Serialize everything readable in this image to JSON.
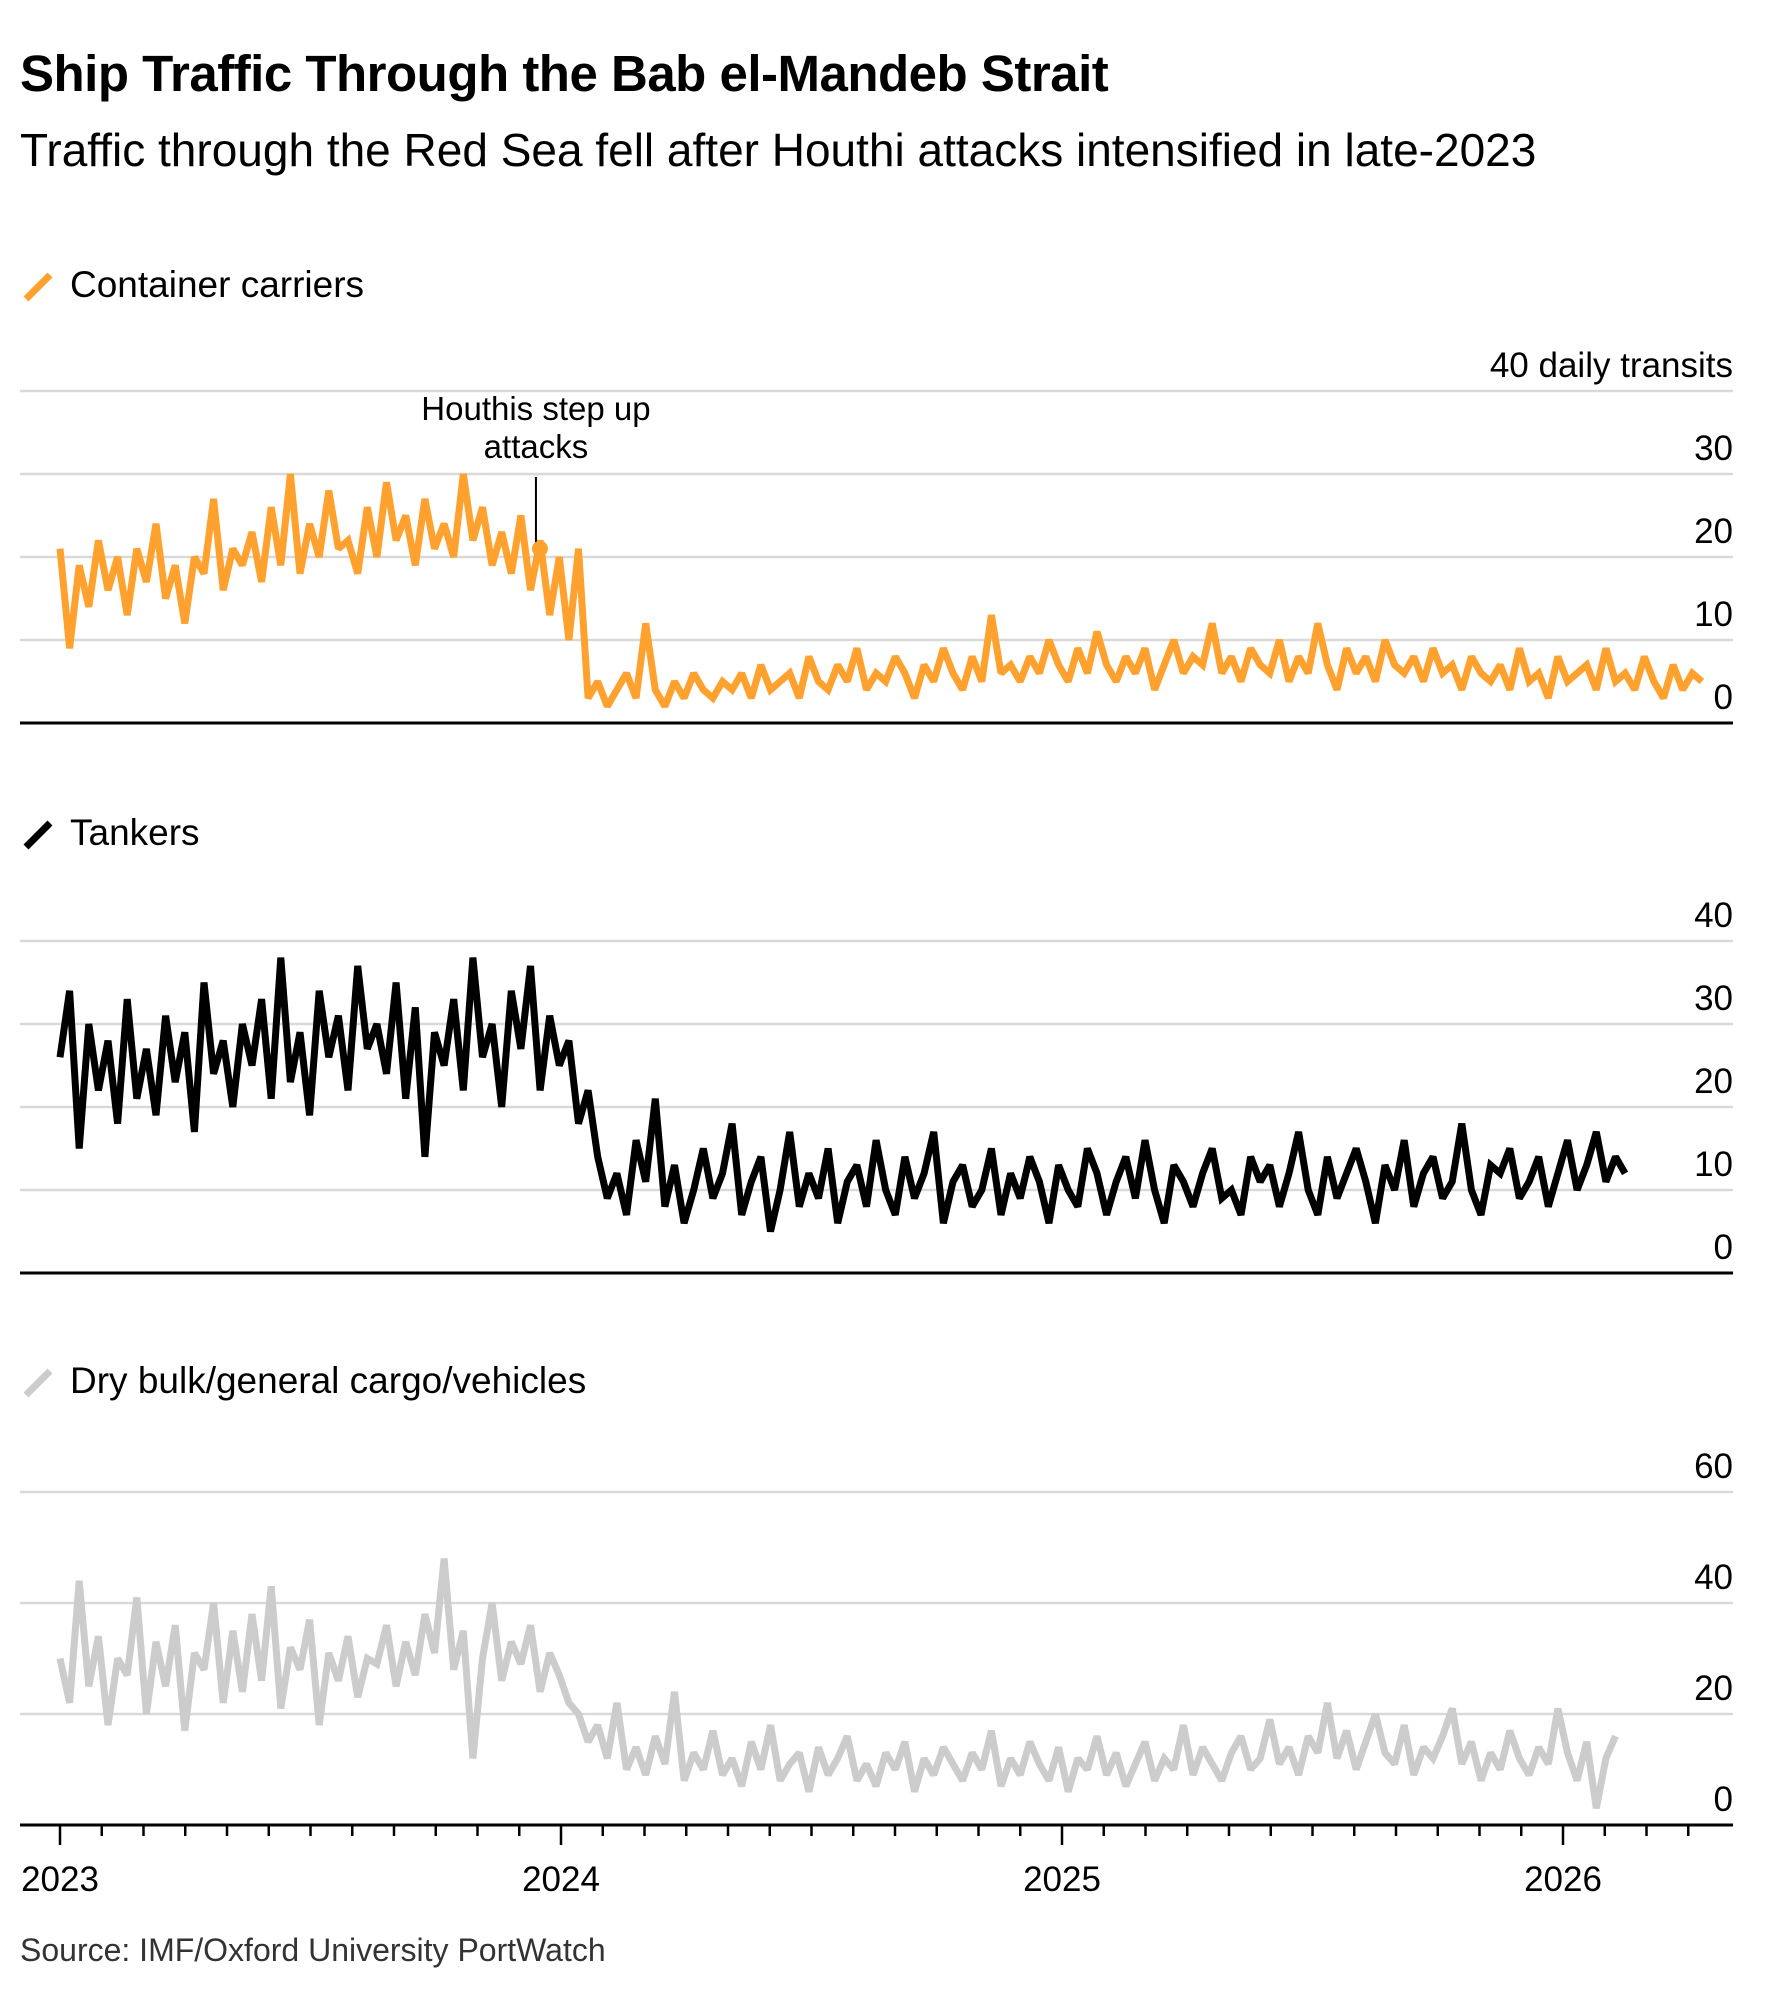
{
  "header": {
    "title": "Ship Traffic Through the Bab el-Mandeb Strait",
    "subtitle": "Traffic through the Red Sea fell after Houthi attacks intensified in late-2023"
  },
  "footer": {
    "source": "Source: IMF/Oxford University PortWatch"
  },
  "colors": {
    "container": "#ffa12e",
    "tankers": "#000000",
    "drybulk": "#cccccc",
    "gridline": "#d9d9d9",
    "axis": "#000000"
  },
  "chart_data": [
    {
      "type": "line",
      "name": "Container carriers",
      "legend_label": "Container carriers",
      "unit_label": "40 daily transits",
      "color": "#ffa12e",
      "ylim": [
        0,
        40
      ],
      "yticks": [
        0,
        10,
        20,
        30,
        40
      ],
      "ytick_labels": [
        "0",
        "10",
        "20",
        "30",
        "40 daily transits"
      ],
      "grid": true,
      "annotation": {
        "text_line1": "Houthis step up",
        "text_line2": "attacks",
        "x": 2023.95,
        "y": 21
      },
      "x_start": 2023.0,
      "x_step_weeks": 1,
      "values": [
        21,
        9,
        19,
        14,
        22,
        16,
        20,
        13,
        21,
        17,
        24,
        15,
        19,
        12,
        20,
        18,
        27,
        16,
        21,
        19,
        23,
        17,
        26,
        19,
        30,
        18,
        24,
        20,
        28,
        21,
        22,
        18,
        26,
        20,
        29,
        22,
        25,
        19,
        27,
        21,
        24,
        20,
        30,
        22,
        26,
        19,
        23,
        18,
        25,
        16,
        22,
        13,
        20,
        10,
        21,
        3,
        5,
        2,
        4,
        6,
        3,
        12,
        4,
        2,
        5,
        3,
        6,
        4,
        3,
        5,
        4,
        6,
        3,
        7,
        4,
        5,
        6,
        3,
        8,
        5,
        4,
        7,
        5,
        9,
        4,
        6,
        5,
        8,
        6,
        3,
        7,
        5,
        9,
        6,
        4,
        8,
        5,
        13,
        6,
        7,
        5,
        8,
        6,
        10,
        7,
        5,
        9,
        6,
        11,
        7,
        5,
        8,
        6,
        9,
        4,
        7,
        10,
        6,
        8,
        7,
        12,
        6,
        8,
        5,
        9,
        7,
        6,
        10,
        5,
        8,
        6,
        12,
        7,
        4,
        9,
        6,
        8,
        5,
        10,
        7,
        6,
        8,
        5,
        9,
        6,
        7,
        4,
        8,
        6,
        5,
        7,
        4,
        9,
        5,
        6,
        3,
        8,
        5,
        6,
        7,
        4,
        9,
        5,
        6,
        4,
        8,
        5,
        3,
        7,
        4,
        6,
        5
      ],
      "xlabel": "",
      "ylabel": ""
    },
    {
      "type": "line",
      "name": "Tankers",
      "legend_label": "Tankers",
      "color": "#000000",
      "ylim": [
        0,
        40
      ],
      "yticks": [
        0,
        10,
        20,
        30,
        40
      ],
      "ytick_labels": [
        "0",
        "10",
        "20",
        "30",
        "40"
      ],
      "grid": true,
      "x_start": 2023.0,
      "x_step_weeks": 1,
      "values": [
        26,
        34,
        15,
        30,
        22,
        28,
        18,
        33,
        21,
        27,
        19,
        31,
        23,
        29,
        17,
        35,
        24,
        28,
        20,
        30,
        25,
        33,
        21,
        38,
        23,
        29,
        19,
        34,
        26,
        31,
        22,
        37,
        27,
        30,
        24,
        35,
        21,
        32,
        14,
        29,
        25,
        33,
        22,
        38,
        26,
        30,
        20,
        34,
        27,
        37,
        22,
        31,
        25,
        28,
        18,
        22,
        14,
        9,
        12,
        7,
        16,
        11,
        21,
        8,
        13,
        6,
        10,
        15,
        9,
        12,
        18,
        7,
        11,
        14,
        5,
        10,
        17,
        8,
        12,
        9,
        15,
        6,
        11,
        13,
        8,
        16,
        10,
        7,
        14,
        9,
        12,
        17,
        6,
        11,
        13,
        8,
        10,
        15,
        7,
        12,
        9,
        14,
        11,
        6,
        13,
        10,
        8,
        15,
        12,
        7,
        11,
        14,
        9,
        16,
        10,
        6,
        13,
        11,
        8,
        12,
        15,
        9,
        10,
        7,
        14,
        11,
        13,
        8,
        12,
        17,
        10,
        7,
        14,
        9,
        12,
        15,
        11,
        6,
        13,
        10,
        16,
        8,
        12,
        14,
        9,
        11,
        18,
        10,
        7,
        13,
        12,
        15,
        9,
        11,
        14,
        8,
        12,
        16,
        10,
        13,
        17,
        11,
        14,
        12
      ],
      "xlabel": "",
      "ylabel": ""
    },
    {
      "type": "line",
      "name": "Dry bulk/general cargo/vehicles",
      "legend_label": "Dry bulk/general cargo/vehicles",
      "color": "#cccccc",
      "ylim": [
        0,
        60
      ],
      "yticks": [
        0,
        20,
        40,
        60
      ],
      "ytick_labels": [
        "0",
        "20",
        "40",
        "60"
      ],
      "grid": true,
      "x_start": 2023.0,
      "x_step_weeks": 1,
      "x_axis": {
        "range": [
          2023.0,
          2026.37
        ],
        "major_ticks": [
          2023,
          2024,
          2025,
          2026
        ],
        "major_labels": [
          "2023",
          "2024",
          "2025",
          "2026"
        ],
        "minor_ticks": "monthly"
      },
      "values": [
        30,
        22,
        44,
        25,
        34,
        18,
        30,
        27,
        41,
        20,
        33,
        25,
        36,
        17,
        31,
        28,
        40,
        22,
        35,
        24,
        38,
        26,
        43,
        21,
        32,
        28,
        37,
        18,
        31,
        26,
        34,
        23,
        30,
        29,
        36,
        25,
        33,
        27,
        38,
        31,
        48,
        28,
        35,
        12,
        30,
        40,
        26,
        33,
        29,
        36,
        24,
        31,
        27,
        22,
        20,
        15,
        18,
        12,
        22,
        10,
        14,
        9,
        16,
        11,
        24,
        8,
        13,
        10,
        17,
        9,
        12,
        7,
        15,
        10,
        18,
        8,
        11,
        13,
        6,
        14,
        9,
        12,
        16,
        8,
        11,
        7,
        13,
        10,
        15,
        6,
        12,
        9,
        14,
        11,
        8,
        13,
        10,
        17,
        7,
        12,
        9,
        15,
        11,
        8,
        14,
        6,
        12,
        10,
        16,
        9,
        13,
        7,
        11,
        15,
        8,
        12,
        10,
        18,
        9,
        14,
        11,
        8,
        13,
        16,
        10,
        12,
        19,
        11,
        14,
        9,
        16,
        13,
        22,
        12,
        17,
        10,
        15,
        20,
        13,
        11,
        18,
        9,
        14,
        12,
        16,
        21,
        11,
        15,
        8,
        13,
        10,
        17,
        12,
        9,
        14,
        11,
        21,
        13,
        8,
        15,
        3,
        12,
        16
      ],
      "xlabel": "",
      "ylabel": ""
    }
  ],
  "x_axis_labels": [
    "2023",
    "2024",
    "2025",
    "2026"
  ]
}
